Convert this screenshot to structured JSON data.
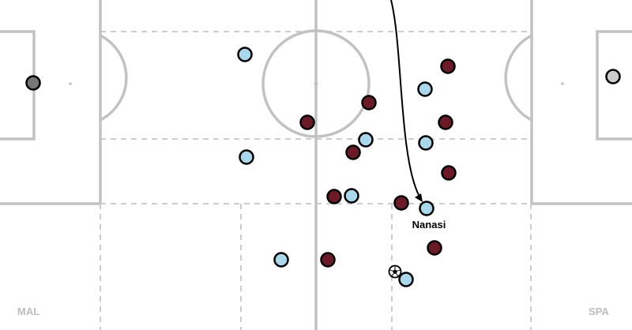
{
  "teams": {
    "left": {
      "code": "MAL",
      "color": "#6b1a26"
    },
    "right": {
      "code": "SPA",
      "color": "#a9d8ec"
    }
  },
  "goalkeepers": {
    "left_color": "#777777",
    "right_color": "#cccccc"
  },
  "colors": {
    "pitch_lines": "#c2c2c2",
    "dashed_lines": "#cccccc",
    "player_outline": "#000000",
    "run_arrow": "#000000"
  },
  "highlighted_player": {
    "name": "Nanasi",
    "team": "right"
  },
  "ball": {
    "icon": "football-icon"
  },
  "run_arrow": {
    "icon": "curved-arrow-icon"
  }
}
